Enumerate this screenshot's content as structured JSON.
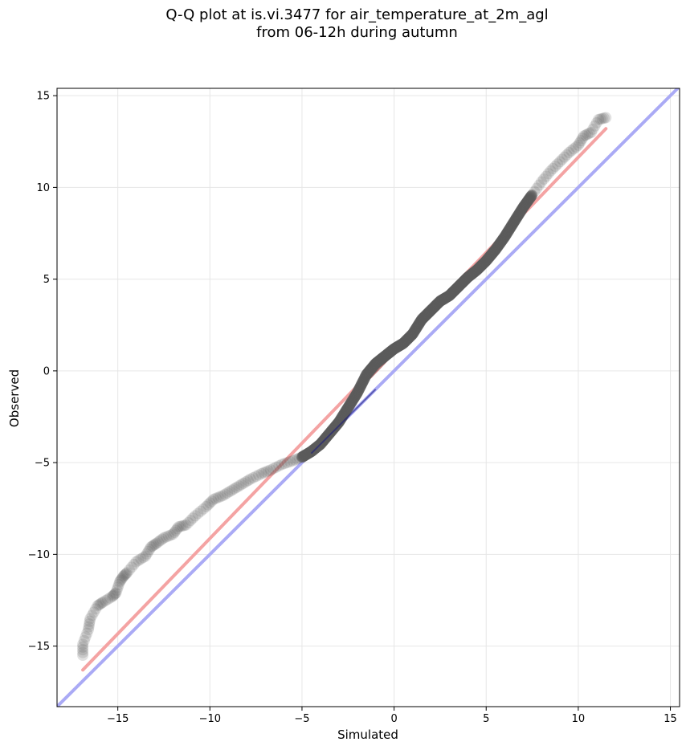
{
  "title": {
    "line1": "Q-Q plot at is.vi.3477 for air_temperature_at_2m_agl",
    "line2": "from 06-12h during autumn"
  },
  "chart_data": {
    "type": "scatter",
    "title": "Q-Q plot at is.vi.3477 for air_temperature_at_2m_agl from 06-12h during autumn",
    "xlabel": "Simulated",
    "ylabel": "Observed",
    "xlim": [
      -18.3,
      15.5
    ],
    "ylim": [
      -18.3,
      15.4
    ],
    "xticks": [
      -15,
      -10,
      -5,
      0,
      5,
      10,
      15
    ],
    "yticks": [
      -15,
      -10,
      -5,
      0,
      5,
      10,
      15
    ],
    "xtick_labels": [
      "−15",
      "−10",
      "−5",
      "0",
      "5",
      "10",
      "15"
    ],
    "ytick_labels": [
      "−15",
      "−10",
      "−5",
      "0",
      "5",
      "10",
      "15"
    ],
    "grid": true,
    "colors": {
      "points": "#5a5a5a",
      "fit_line": "#f4a3a3",
      "identity_line": "#aaaaf5",
      "fit_line_dense": "#8b1010",
      "identity_line_dense": "#18187a"
    },
    "identity_line": {
      "x": [
        -18.3,
        15.5
      ],
      "y": [
        -18.3,
        15.5
      ]
    },
    "fit_line": {
      "x": [
        -16.9,
        11.5
      ],
      "y": [
        -16.3,
        13.2
      ]
    },
    "quantiles": {
      "simulated": [
        -16.9,
        -16.9,
        -16.6,
        -16.5,
        -16.1,
        -15.8,
        -15.3,
        -15.1,
        -14.9,
        -14.7,
        -14.5,
        -14.0,
        -13.5,
        -13.2,
        -12.9,
        -12.5,
        -12.0,
        -11.7,
        -11.3,
        -10.8,
        -10.2,
        -9.8,
        -9.3,
        -8.8,
        -8.3,
        -7.8,
        -7.2,
        -6.7,
        -6.1,
        -5.5,
        -5.0,
        -4.5,
        -4.0,
        -3.5,
        -3.0,
        -2.5,
        -2.0,
        -1.5,
        -1.0,
        -0.5,
        0.0,
        0.5,
        1.0,
        1.5,
        2.0,
        2.5,
        3.0,
        3.5,
        4.0,
        4.5,
        5.0,
        5.5,
        6.0,
        6.5,
        7.0,
        7.5,
        8.0,
        8.5,
        9.0,
        9.5,
        10.0,
        10.3,
        10.7,
        11.1,
        11.5
      ],
      "observed": [
        -15.5,
        -14.9,
        -14.1,
        -13.5,
        -12.8,
        -12.6,
        -12.3,
        -12.1,
        -11.5,
        -11.2,
        -11.0,
        -10.4,
        -10.1,
        -9.6,
        -9.4,
        -9.1,
        -8.9,
        -8.5,
        -8.4,
        -7.9,
        -7.4,
        -7.0,
        -6.8,
        -6.5,
        -6.2,
        -5.9,
        -5.6,
        -5.4,
        -5.1,
        -4.9,
        -4.7,
        -4.4,
        -4.0,
        -3.4,
        -2.8,
        -2.0,
        -1.2,
        -0.2,
        0.4,
        0.8,
        1.2,
        1.5,
        2.0,
        2.8,
        3.3,
        3.8,
        4.1,
        4.6,
        5.1,
        5.5,
        6.0,
        6.6,
        7.3,
        8.1,
        8.9,
        9.6,
        10.3,
        10.9,
        11.4,
        11.9,
        12.3,
        12.8,
        13.0,
        13.7,
        13.8
      ]
    }
  }
}
